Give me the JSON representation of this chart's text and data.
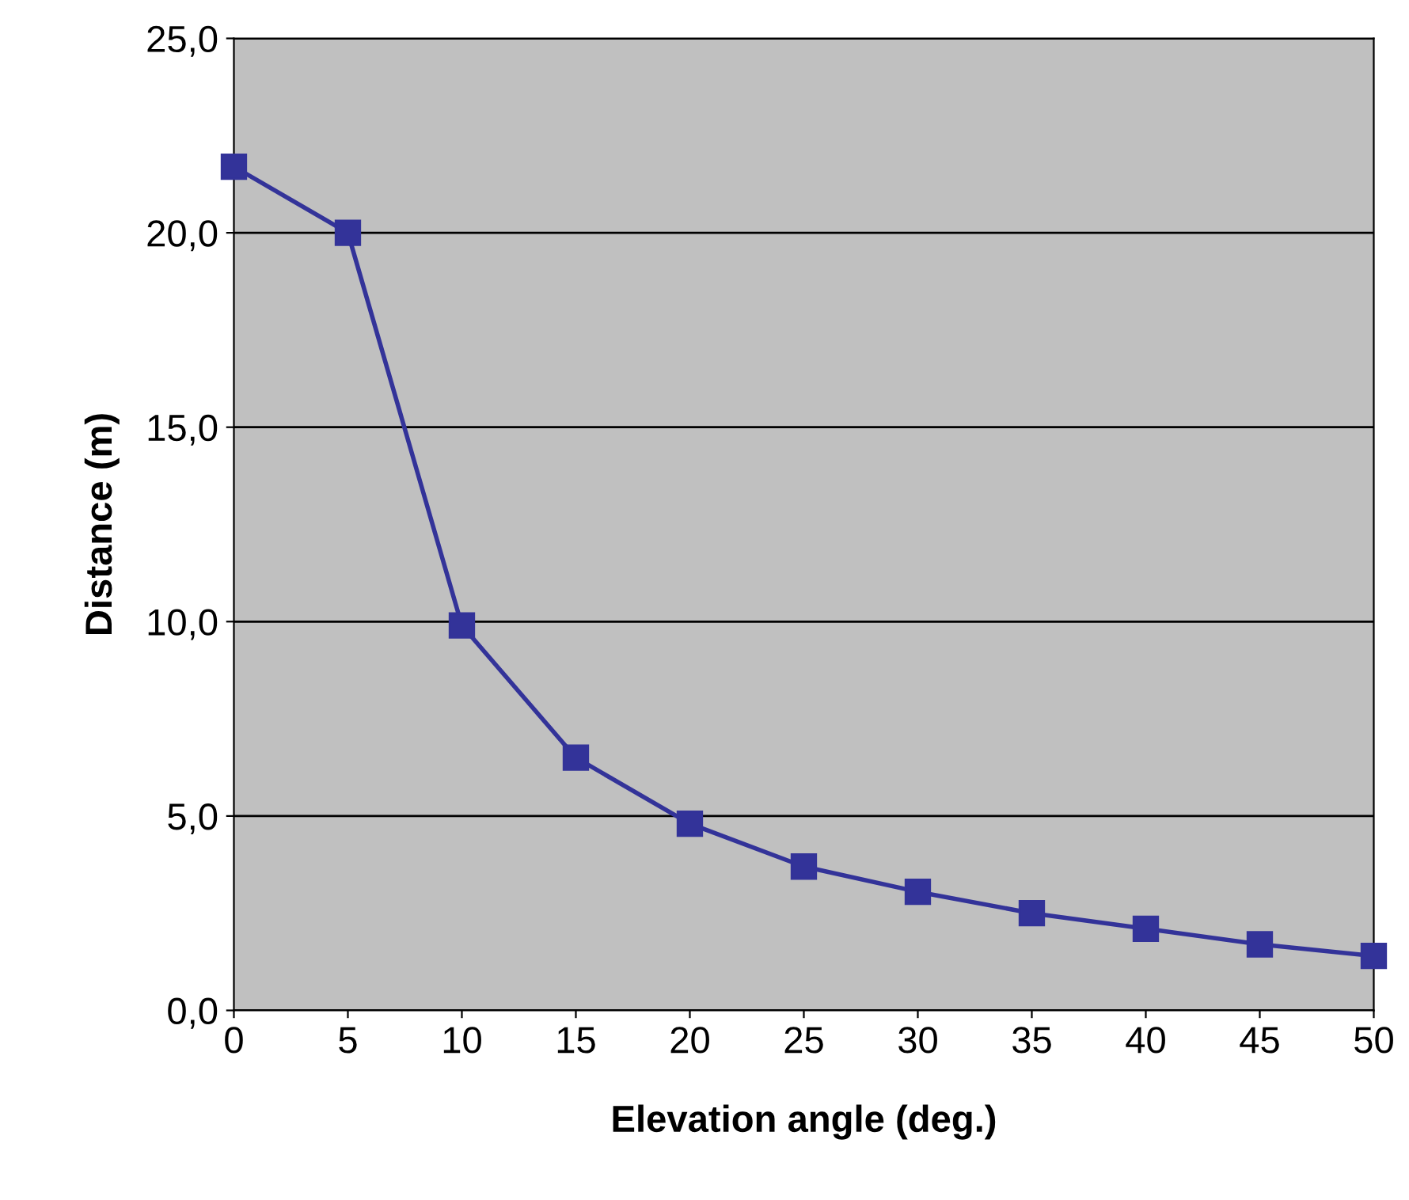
{
  "chart_data": {
    "type": "line",
    "xlabel": "Elevation angle (deg.)",
    "ylabel": "Distance (m)",
    "x": [
      0,
      5,
      10,
      15,
      20,
      25,
      30,
      35,
      40,
      45,
      50
    ],
    "series": [
      {
        "color": "#333399",
        "values": [
          21.7,
          20.0,
          9.9,
          6.5,
          4.8,
          3.7,
          3.05,
          2.5,
          2.1,
          1.7,
          1.4
        ]
      }
    ],
    "xlim": [
      0,
      50
    ],
    "xticks": [
      0,
      5,
      10,
      15,
      20,
      25,
      30,
      35,
      40,
      45,
      50
    ],
    "ylim": [
      0,
      25
    ],
    "yticks": [
      {
        "value": 0,
        "label": "0,0"
      },
      {
        "value": 5,
        "label": "5,0"
      },
      {
        "value": 10,
        "label": "10,0"
      },
      {
        "value": 15,
        "label": "15,0"
      },
      {
        "value": 20,
        "label": "20,0"
      },
      {
        "value": 25,
        "label": "25,0"
      }
    ],
    "grid": "y",
    "marker": "square",
    "line_style": "solid",
    "legend": false
  }
}
